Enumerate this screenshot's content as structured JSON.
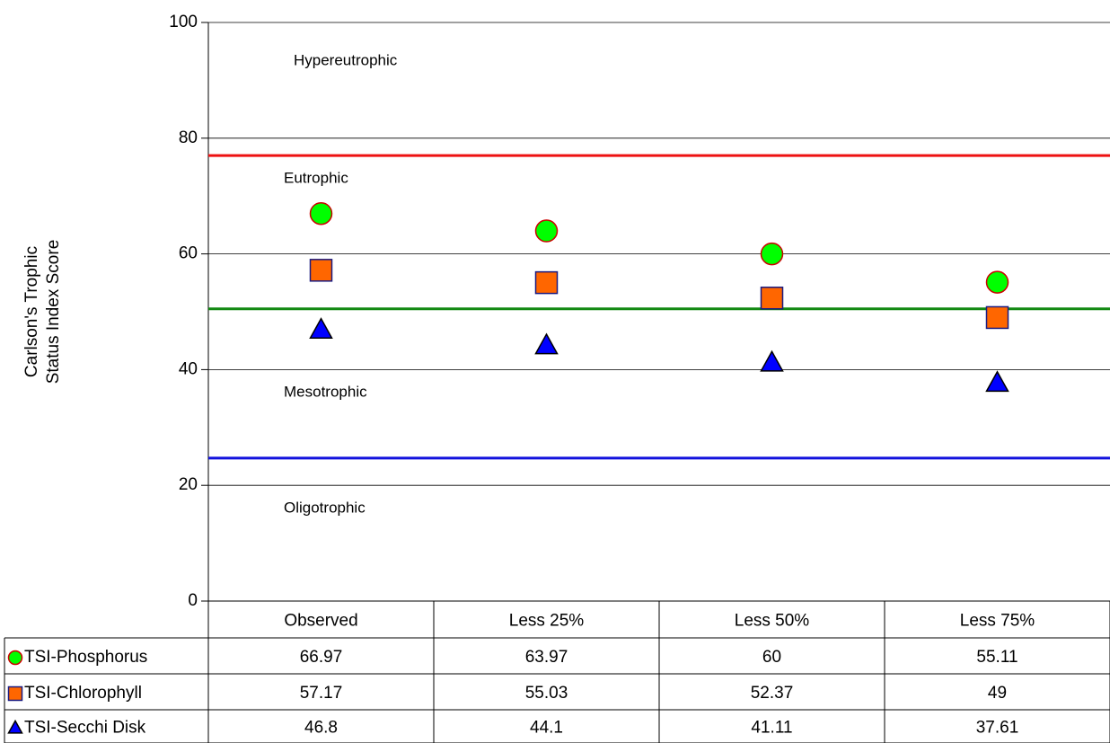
{
  "chart_data": {
    "type": "scatter",
    "ylabel": [
      "Carlson's Trophic",
      "Status Index Score"
    ],
    "categories": [
      "Observed",
      "Less 25%",
      "Less 50%",
      "Less 75%"
    ],
    "series": [
      {
        "name": "TSI-Phosphorus",
        "color": "#00ff00",
        "edge": "#cc0000",
        "marker": "circle",
        "values": [
          66.97,
          63.97,
          60,
          55.11
        ]
      },
      {
        "name": "TSI-Chlorophyll",
        "color": "#ff6600",
        "edge": "#1a1a80",
        "marker": "square",
        "values": [
          57.17,
          55.03,
          52.37,
          49
        ]
      },
      {
        "name": "TSI-Secchi Disk",
        "color": "#0000ff",
        "edge": "#000000",
        "marker": "triangle",
        "values": [
          46.8,
          44.1,
          41.11,
          37.61
        ]
      }
    ],
    "reference_lines": [
      {
        "value": 77,
        "color": "#ee1111"
      },
      {
        "value": 50.5,
        "color": "#118811"
      },
      {
        "value": 24.7,
        "color": "#1111dd"
      }
    ],
    "annotations": [
      {
        "text": "Hypereutrophic",
        "value": 93.3
      },
      {
        "text": "Eutrophic",
        "value": 73
      },
      {
        "text": "Mesotrophic",
        "value": 36
      },
      {
        "text": "Oligotrophic",
        "value": 16
      }
    ],
    "ylim": [
      0,
      100
    ],
    "yticks": [
      0,
      20,
      40,
      60,
      80,
      100
    ],
    "grid": true
  }
}
